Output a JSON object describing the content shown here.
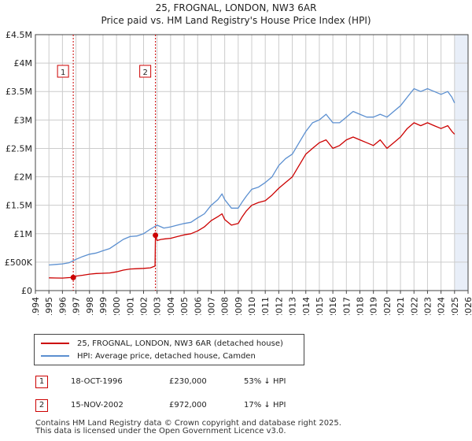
{
  "title_line1": "25, FROGNAL, LONDON, NW3 6AR",
  "title_line2": "Price paid vs. HM Land Registry's House Price Index (HPI)",
  "colors": {
    "red": "#cc0000",
    "blue": "#5b8fd0",
    "grid": "#cccccc",
    "shade": "#e8eef8"
  },
  "chart_data": {
    "type": "line",
    "title": "25, FROGNAL, LONDON, NW3 6AR — Price paid vs. HM Land Registry's House Price Index (HPI)",
    "xlabel": "",
    "ylabel": "",
    "xlim": [
      1994,
      2026
    ],
    "ylim": [
      0,
      4500000
    ],
    "y_ticks": [
      {
        "value": 0,
        "label": "£0"
      },
      {
        "value": 500000,
        "label": "£500K"
      },
      {
        "value": 1000000,
        "label": "£1M"
      },
      {
        "value": 1500000,
        "label": "£1.5M"
      },
      {
        "value": 2000000,
        "label": "£2M"
      },
      {
        "value": 2500000,
        "label": "£2.5M"
      },
      {
        "value": 3000000,
        "label": "£3M"
      },
      {
        "value": 3500000,
        "label": "£3.5M"
      },
      {
        "value": 4000000,
        "label": "£4M"
      },
      {
        "value": 4500000,
        "label": "£4.5M"
      }
    ],
    "x_ticks": [
      "1994",
      "1995",
      "1996",
      "1997",
      "1998",
      "1999",
      "2000",
      "2001",
      "2002",
      "2003",
      "2004",
      "2005",
      "2006",
      "2007",
      "2008",
      "2009",
      "2010",
      "2011",
      "2012",
      "2013",
      "2014",
      "2015",
      "2016",
      "2017",
      "2018",
      "2019",
      "2020",
      "2021",
      "2022",
      "2023",
      "2024",
      "2025",
      "2026"
    ],
    "shaded_range": [
      2025.0,
      2026
    ],
    "series": [
      {
        "name": "25, FROGNAL, LONDON, NW3 6AR (detached house)",
        "color": "#cc0000",
        "x": [
          1995.0,
          1995.5,
          1996.0,
          1996.5,
          1996.8,
          1997.0,
          1997.5,
          1998.0,
          1998.5,
          1999.0,
          1999.5,
          2000.0,
          2000.5,
          2001.0,
          2001.5,
          2002.0,
          2002.5,
          2002.85,
          2002.88,
          2003.0,
          2003.3,
          2003.6,
          2004.0,
          2004.5,
          2005.0,
          2005.5,
          2006.0,
          2006.5,
          2007.0,
          2007.5,
          2007.8,
          2008.0,
          2008.5,
          2009.0,
          2009.3,
          2009.6,
          2010.0,
          2010.5,
          2011.0,
          2011.5,
          2012.0,
          2012.5,
          2013.0,
          2013.5,
          2014.0,
          2014.5,
          2015.0,
          2015.5,
          2016.0,
          2016.5,
          2017.0,
          2017.5,
          2018.0,
          2018.5,
          2019.0,
          2019.5,
          2020.0,
          2020.5,
          2021.0,
          2021.5,
          2022.0,
          2022.5,
          2023.0,
          2023.5,
          2024.0,
          2024.5,
          2024.8,
          2025.0
        ],
        "values": [
          225000,
          222000,
          220000,
          228000,
          230000,
          255000,
          270000,
          290000,
          300000,
          305000,
          310000,
          330000,
          360000,
          380000,
          385000,
          390000,
          400000,
          430000,
          972000,
          880000,
          900000,
          910000,
          920000,
          950000,
          980000,
          1000000,
          1050000,
          1120000,
          1230000,
          1300000,
          1350000,
          1250000,
          1150000,
          1180000,
          1300000,
          1400000,
          1500000,
          1550000,
          1580000,
          1680000,
          1800000,
          1900000,
          2000000,
          2200000,
          2400000,
          2500000,
          2600000,
          2650000,
          2500000,
          2550000,
          2650000,
          2700000,
          2650000,
          2600000,
          2550000,
          2650000,
          2500000,
          2600000,
          2700000,
          2850000,
          2950000,
          2900000,
          2950000,
          2900000,
          2850000,
          2900000,
          2800000,
          2750000
        ]
      },
      {
        "name": "HPI: Average price, detached house, Camden",
        "color": "#5b8fd0",
        "x": [
          1995.0,
          1995.5,
          1996.0,
          1996.5,
          1997.0,
          1997.5,
          1998.0,
          1998.5,
          1999.0,
          1999.5,
          2000.0,
          2000.5,
          2001.0,
          2001.5,
          2002.0,
          2002.5,
          2003.0,
          2003.5,
          2004.0,
          2004.5,
          2005.0,
          2005.5,
          2006.0,
          2006.5,
          2007.0,
          2007.5,
          2007.8,
          2008.0,
          2008.5,
          2009.0,
          2009.3,
          2009.6,
          2010.0,
          2010.5,
          2011.0,
          2011.5,
          2012.0,
          2012.5,
          2013.0,
          2013.5,
          2014.0,
          2014.5,
          2015.0,
          2015.5,
          2016.0,
          2016.5,
          2017.0,
          2017.5,
          2018.0,
          2018.5,
          2019.0,
          2019.5,
          2020.0,
          2020.5,
          2021.0,
          2021.5,
          2022.0,
          2022.5,
          2023.0,
          2023.5,
          2024.0,
          2024.5,
          2024.8,
          2025.0
        ],
        "values": [
          450000,
          460000,
          470000,
          490000,
          550000,
          600000,
          640000,
          660000,
          700000,
          740000,
          820000,
          900000,
          950000,
          960000,
          1000000,
          1080000,
          1150000,
          1100000,
          1120000,
          1150000,
          1180000,
          1200000,
          1280000,
          1350000,
          1500000,
          1600000,
          1700000,
          1600000,
          1450000,
          1450000,
          1560000,
          1660000,
          1780000,
          1820000,
          1900000,
          2000000,
          2200000,
          2320000,
          2400000,
          2600000,
          2800000,
          2950000,
          3000000,
          3100000,
          2950000,
          2950000,
          3050000,
          3150000,
          3100000,
          3050000,
          3050000,
          3100000,
          3050000,
          3150000,
          3250000,
          3400000,
          3550000,
          3500000,
          3550000,
          3500000,
          3450000,
          3500000,
          3400000,
          3300000
        ]
      }
    ],
    "annotations": [
      {
        "label": "1",
        "x": 1996.8,
        "value": 230000
      },
      {
        "label": "2",
        "x": 2002.88,
        "value": 972000
      }
    ]
  },
  "legend": {
    "red_label": "25, FROGNAL, LONDON, NW3 6AR (detached house)",
    "blue_label": "HPI: Average price, detached house, Camden"
  },
  "transactions": [
    {
      "num": "1",
      "date": "18-OCT-1996",
      "price": "£230,000",
      "hpi": "53% ↓ HPI"
    },
    {
      "num": "2",
      "date": "15-NOV-2002",
      "price": "£972,000",
      "hpi": "17% ↓ HPI"
    }
  ],
  "footer_line1": "Contains HM Land Registry data © Crown copyright and database right 2025.",
  "footer_line2": "This data is licensed under the Open Government Licence v3.0."
}
